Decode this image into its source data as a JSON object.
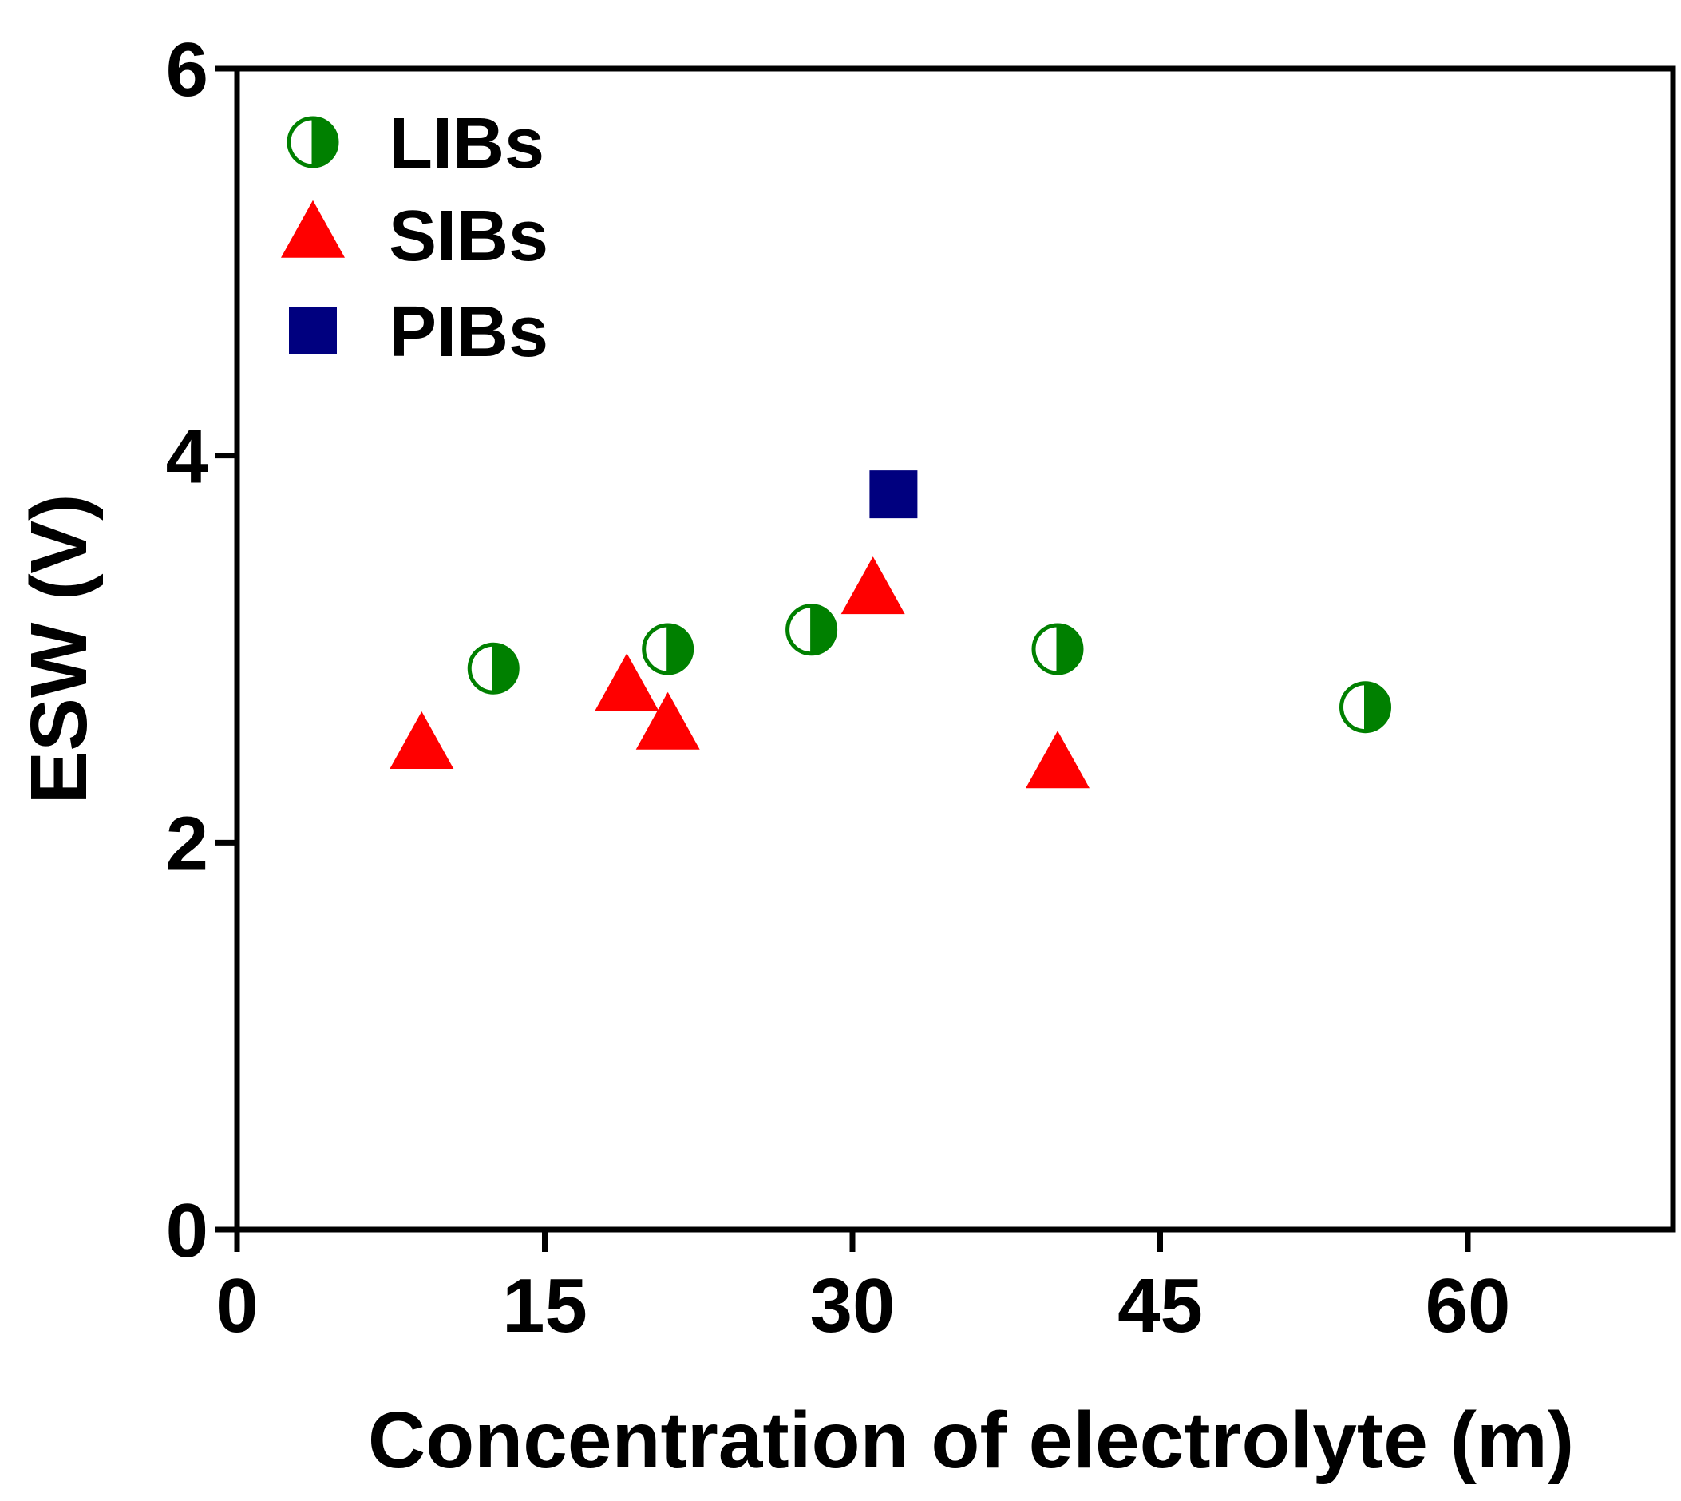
{
  "chart_data": {
    "type": "scatter",
    "title": "",
    "xlabel": "Concentration of electrolyte (m)",
    "ylabel": "ESW  (V)",
    "xlim": [
      0,
      70
    ],
    "ylim": [
      0,
      6
    ],
    "xticks": [
      0,
      15,
      30,
      45,
      60
    ],
    "yticks": [
      0,
      2,
      4,
      6
    ],
    "legend_position": "top-left",
    "series": [
      {
        "name": "LIBs",
        "marker": "half-filled-circle",
        "color": "#008000",
        "points": [
          {
            "x": 12.5,
            "y": 2.9
          },
          {
            "x": 21,
            "y": 3.0
          },
          {
            "x": 28,
            "y": 3.1
          },
          {
            "x": 40,
            "y": 3.0
          },
          {
            "x": 55,
            "y": 2.7
          }
        ]
      },
      {
        "name": "SIBs",
        "marker": "triangle",
        "color": "#ff0000",
        "points": [
          {
            "x": 9,
            "y": 2.5
          },
          {
            "x": 19,
            "y": 2.8
          },
          {
            "x": 21,
            "y": 2.6
          },
          {
            "x": 31,
            "y": 3.3
          },
          {
            "x": 40,
            "y": 2.4
          }
        ]
      },
      {
        "name": "PIBs",
        "marker": "square",
        "color": "#00007f",
        "points": [
          {
            "x": 32,
            "y": 3.8
          }
        ]
      }
    ]
  }
}
